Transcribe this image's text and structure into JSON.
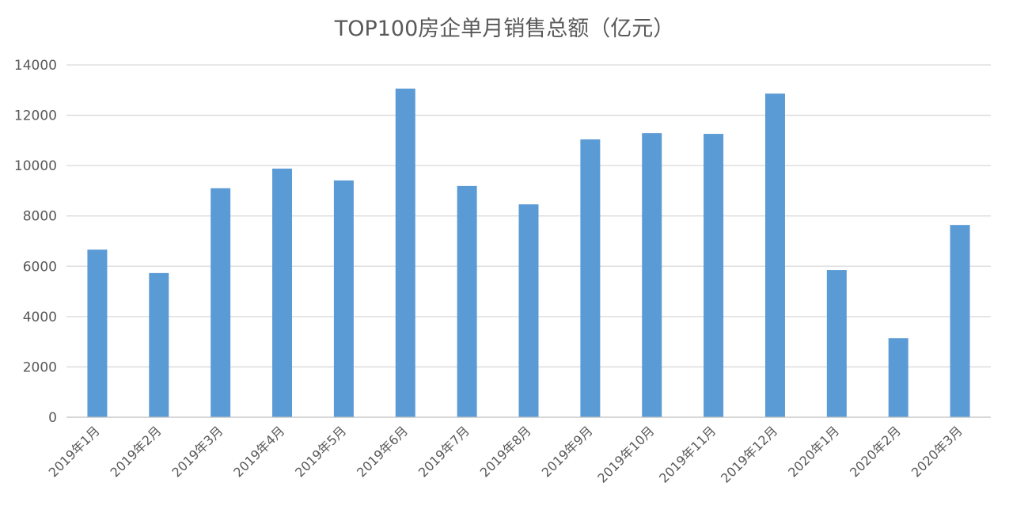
{
  "chart_data": {
    "type": "bar",
    "title": "TOP100房企单月销售总额（亿元）",
    "categories": [
      "2019年1月",
      "2019年2月",
      "2019年3月",
      "2019年4月",
      "2019年5月",
      "2019年6月",
      "2019年7月",
      "2019年8月",
      "2019年9月",
      "2019年10月",
      "2019年11月",
      "2019年12月",
      "2020年1月",
      "2020年2月",
      "2020年3月"
    ],
    "series": [
      {
        "values": [
          6660,
          5730,
          9100,
          9880,
          9410,
          13060,
          9190,
          8460,
          11040,
          11290,
          11260,
          12860,
          5850,
          3140,
          7640
        ]
      }
    ],
    "xlabel": "",
    "ylabel": "",
    "ylim": [
      0,
      14000
    ],
    "yticks": [
      0,
      2000,
      4000,
      6000,
      8000,
      10000,
      12000,
      14000
    ],
    "grid": true,
    "legend": "none",
    "bar_color": "#5b9bd5",
    "grid_color": "#d9d9d9",
    "axis_color": "#bfbfbf",
    "text_color": "#595959"
  }
}
